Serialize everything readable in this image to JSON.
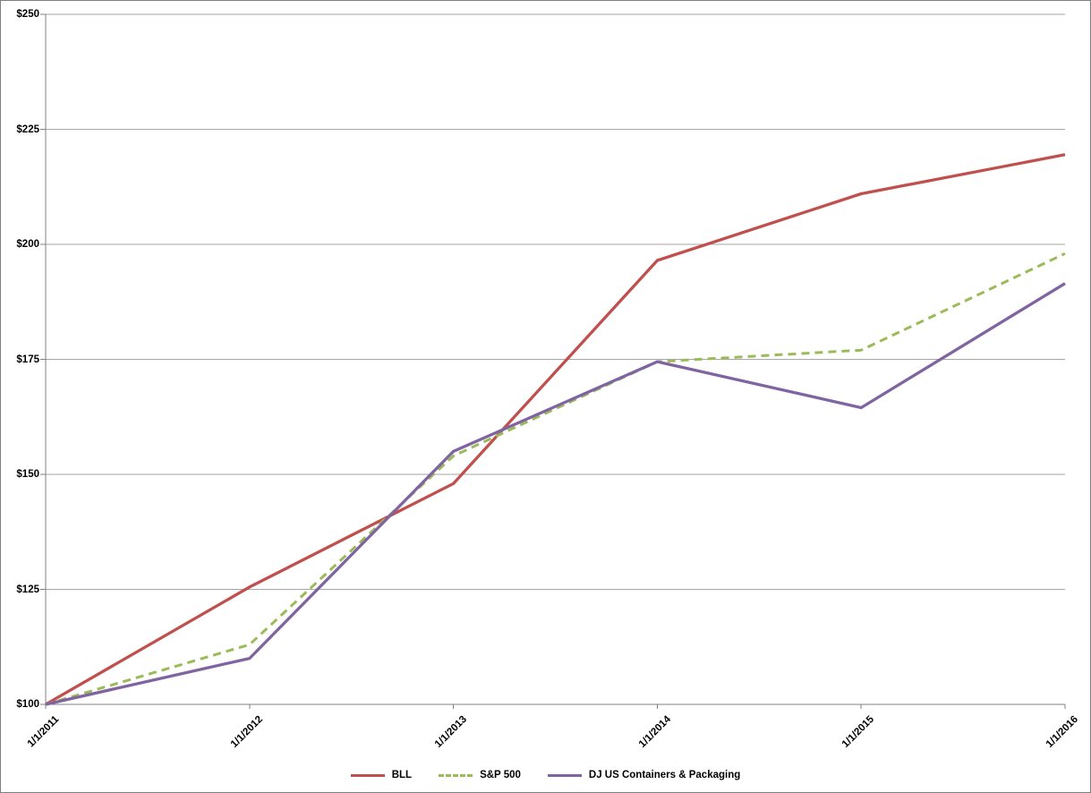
{
  "chart_data": {
    "type": "line",
    "title": "",
    "xlabel": "",
    "ylabel": "",
    "categories": [
      "1/1/2011",
      "1/1/2012",
      "1/1/2013",
      "1/1/2014",
      "1/1/2015",
      "1/1/2016"
    ],
    "series": [
      {
        "name": "BLL",
        "color": "#C0504D",
        "style": "solid",
        "values": [
          100,
          125.5,
          148,
          196.5,
          211,
          219.5
        ]
      },
      {
        "name": "S&P 500",
        "color": "#9BBB59",
        "style": "dashed",
        "values": [
          100,
          113,
          154,
          174.5,
          177,
          198
        ]
      },
      {
        "name": "DJ US Containers & Packaging",
        "color": "#8064A2",
        "style": "solid",
        "values": [
          100,
          110,
          155,
          174.5,
          164.5,
          191.5
        ]
      }
    ],
    "y_axis": {
      "min": 100,
      "max": 250,
      "step": 25,
      "prefix": "$",
      "tick_labels": [
        "$100",
        "$125",
        "$150",
        "$175",
        "$200",
        "$225",
        "$250"
      ]
    },
    "x_axis": {
      "tick_labels_rotation": -45
    },
    "grid": true,
    "legend_position": "bottom-center",
    "colors": {
      "gridline": "#A6A6A6",
      "axis": "#808080",
      "text": "#000000",
      "background": "#FFFFFF"
    }
  }
}
